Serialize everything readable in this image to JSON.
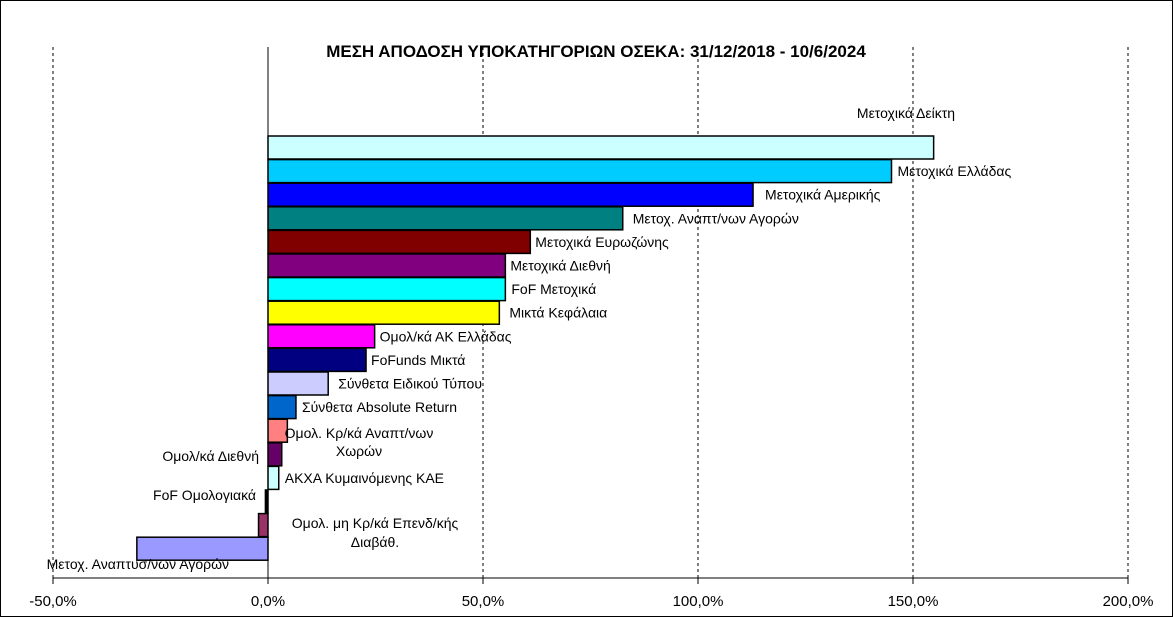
{
  "chart_data": {
    "type": "bar",
    "orientation": "horizontal",
    "title": "ΜΕΣΗ ΑΠΟΔΟΣΗ ΥΠΟΚΑΤΗΓΟΡΙΩΝ ΟΣΕΚΑ: 31/12/2018 - 10/6/2024",
    "xlabel": "",
    "ylabel": "",
    "xlim": [
      -50,
      200
    ],
    "x_ticks": [
      "-50,0%",
      "0,0%",
      "50,0%",
      "100,0%",
      "150,0%",
      "200,0%"
    ],
    "grid": "vertical dashed",
    "legend": "none",
    "categories": [
      {
        "label": [
          "Μετοχικά Δείκτη"
        ],
        "value": 154.8,
        "color": "#ccffff"
      },
      {
        "label": [
          "Μετοχικά Ελλάδας"
        ],
        "value": 145.0,
        "color": "#00ccff"
      },
      {
        "label": [
          "Μετοχικά Αμερικής"
        ],
        "value": 112.8,
        "color": "#0000ff"
      },
      {
        "label": [
          "Μετοχ. Αναπτ/νων Αγορών"
        ],
        "value": 82.5,
        "color": "#008080"
      },
      {
        "label": [
          "Μετοχικά Ευρωζώνης"
        ],
        "value": 61.0,
        "color": "#800000"
      },
      {
        "label": [
          "Μετοχικά Διεθνή"
        ],
        "value": 55.2,
        "color": "#800080"
      },
      {
        "label": [
          "FoF Μετοχικά"
        ],
        "value": 55.2,
        "color": "#00ffff"
      },
      {
        "label": [
          "Μικτά Κεφάλαια"
        ],
        "value": 53.8,
        "color": "#ffff00"
      },
      {
        "label": [
          "Ομολ/κά ΑΚ Ελλάδας"
        ],
        "value": 24.8,
        "color": "#ff00ff"
      },
      {
        "label": [
          "FoFunds Μικτά"
        ],
        "value": 22.8,
        "color": "#000080"
      },
      {
        "label": [
          "Σύνθετα Ειδικού Τύπου"
        ],
        "value": 14.0,
        "color": "#ccccff"
      },
      {
        "label": [
          "Σύνθετα Absolute Return"
        ],
        "value": 6.5,
        "color": "#0066cc"
      },
      {
        "label": [
          "Ομολ. Κρ/κά Αναπτ/νων",
          "Χωρών"
        ],
        "value": 4.5,
        "color": "#ff8080"
      },
      {
        "label": [
          "Ομολ/κά Διεθνή"
        ],
        "value": 3.2,
        "color": "#660066"
      },
      {
        "label": [
          "ΑΚΧΑ Κυμαινόμενης  ΚΑΕ"
        ],
        "value": 2.5,
        "color": "#ccffff"
      },
      {
        "label": [
          "FoF Ομολογιακά"
        ],
        "value": -0.6,
        "color": "#000000"
      },
      {
        "label": [
          "Ομολ. μη Κρ/κά Επενδ/κής",
          "Διαβάθ."
        ],
        "value": -2.2,
        "color": "#993366"
      },
      {
        "label": [
          "Μετοχ. Αναπτυσ/νων Αγορών"
        ],
        "value": -30.5,
        "color": "#9999ff"
      }
    ]
  }
}
